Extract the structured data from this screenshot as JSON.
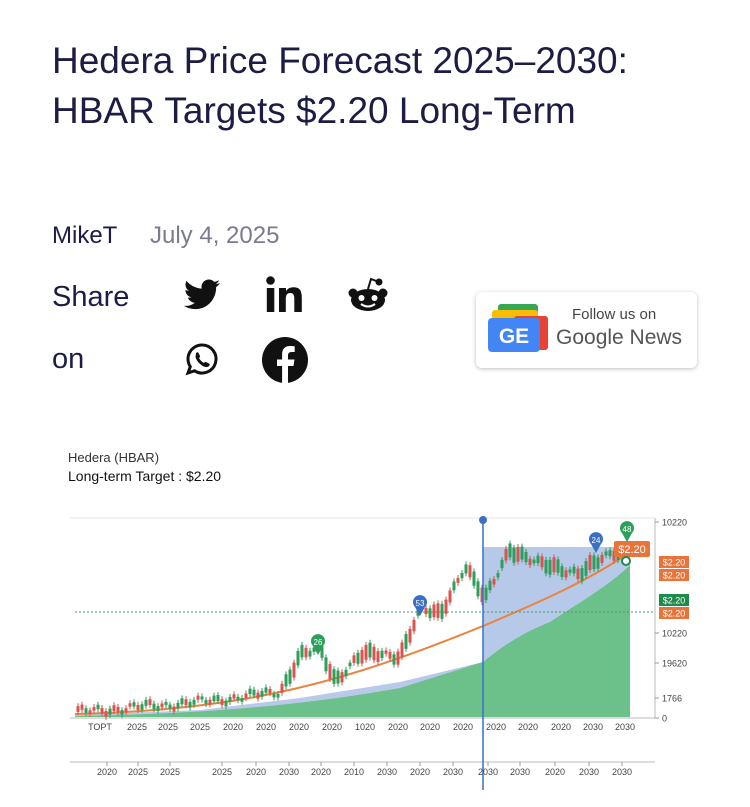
{
  "article": {
    "title": "Hedera Price Forecast 2025–2030: HBAR Targets $2.20 Long-Term",
    "author": "MikeT",
    "date": "July 4, 2025"
  },
  "share": {
    "label": "Share on"
  },
  "google_news": {
    "badge": "GE",
    "follow": "Follow us on",
    "name": "Google News"
  },
  "chart_image": {
    "title": "Hedera (HBAR)",
    "subtitle": "Long-term Target : $2.20",
    "price_tag": "$2.20",
    "markers": [
      {
        "text": "26",
        "color": "#2e9e5b"
      },
      {
        "text": "53",
        "color": "#3a6fc4"
      },
      {
        "text": "24",
        "color": "#3a6fc4"
      },
      {
        "text": "48",
        "color": "#2e9e5b"
      }
    ],
    "right_labels": [
      {
        "text": "10220"
      },
      {
        "text": "$2.20",
        "color": "#e8743b"
      },
      {
        "text": "$2.20",
        "color": "#e8743b"
      },
      {
        "text": "$2.20",
        "color": "#1f8a4c"
      },
      {
        "text": "$2.20",
        "color": "#e8743b"
      },
      {
        "text": "10220"
      },
      {
        "text": "19620"
      },
      {
        "text": "1766"
      },
      {
        "text": "0"
      }
    ],
    "x_labels_top": [
      "TOPT",
      "2025",
      "2025",
      "2025",
      "2020",
      "2020",
      "2020",
      "2020",
      "1020",
      "2020",
      "2020",
      "2020",
      "2020",
      "2020",
      "2020",
      "2030",
      "2030"
    ],
    "x_labels_bottom": [
      "2020",
      "2025",
      "2025",
      "2025",
      "2020",
      "2030",
      "2020",
      "2010",
      "2030",
      "2020",
      "2030",
      "2030",
      "2030",
      "2020",
      "2030",
      "2030"
    ]
  }
}
